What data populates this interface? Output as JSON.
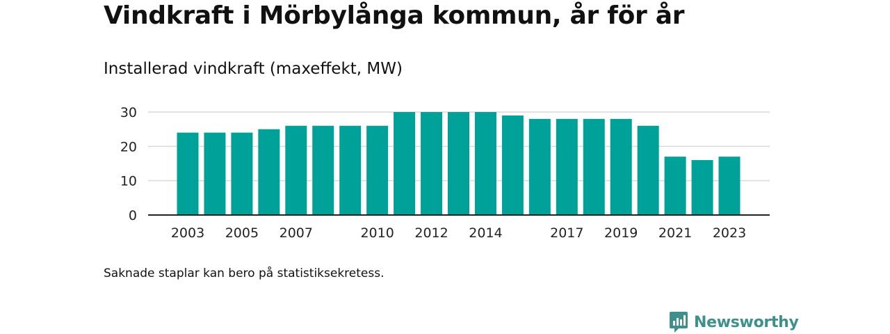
{
  "title": "Vindkraft i Mörbylånga kommun, år för år",
  "subtitle": "Installerad vindkraft (maxeffekt, MW)",
  "footnote": "Saknade staplar kan bero på statistiksekretess.",
  "brand": {
    "name": "Newsworthy",
    "icon": "newsworthy-logo-icon"
  },
  "colors": {
    "bar": "#00a199",
    "grid": "#d9d9d9",
    "axis": "#222222",
    "brand": "#3f8f8c"
  },
  "chart_data": {
    "type": "bar",
    "categories": [
      "2003",
      "2004",
      "2005",
      "2006",
      "2007",
      "2008",
      "2009",
      "2010",
      "2011",
      "2012",
      "2013",
      "2014",
      "2015",
      "2016",
      "2017",
      "2018",
      "2019",
      "2020",
      "2021",
      "2022",
      "2023"
    ],
    "values": [
      24,
      24,
      24,
      25,
      26,
      26,
      26,
      26,
      30,
      30,
      30,
      30,
      29,
      28,
      28,
      28,
      28,
      26,
      17,
      16,
      17
    ],
    "x_tick_labels": [
      "2003",
      "2005",
      "2007",
      "2010",
      "2012",
      "2014",
      "2017",
      "2019",
      "2021",
      "2023"
    ],
    "y_ticks": [
      0,
      10,
      20,
      30
    ],
    "ylim": [
      0,
      30
    ],
    "grid": true,
    "legend": false
  }
}
